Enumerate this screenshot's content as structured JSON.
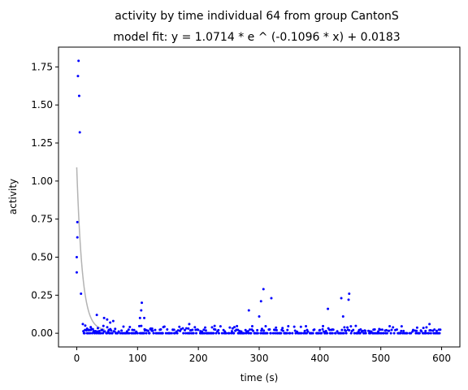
{
  "chart_data": {
    "type": "scatter",
    "title": "activity by time individual 64 from group CantonS",
    "subtitle": "model fit: y = 1.0714 * e ^ (-0.1096 * x) + 0.0183",
    "xlabel": "time (s)",
    "ylabel": "activity",
    "xlim": [
      -30,
      630
    ],
    "ylim": [
      -0.09,
      1.88
    ],
    "x_ticks": [
      0,
      100,
      200,
      300,
      400,
      500,
      600
    ],
    "x_tick_labels": [
      "0",
      "100",
      "200",
      "300",
      "400",
      "500",
      "600"
    ],
    "y_ticks": [
      0.0,
      0.25,
      0.5,
      0.75,
      1.0,
      1.25,
      1.5,
      1.75
    ],
    "y_tick_labels": [
      "0.00",
      "0.25",
      "0.50",
      "0.75",
      "1.00",
      "1.25",
      "1.50",
      "1.75"
    ],
    "grid": false,
    "colors": {
      "points": "#0000ff",
      "fit_line": "#b3b3b3"
    },
    "fit": {
      "a": 1.0714,
      "b": -0.1096,
      "c": 0.0183,
      "x_range": [
        0,
        46
      ]
    },
    "series": [
      {
        "points": [
          [
            0,
            0.4
          ],
          [
            0,
            0.5
          ],
          [
            1,
            0.63
          ],
          [
            1,
            0.73
          ],
          [
            2,
            1.69
          ],
          [
            3,
            1.79
          ],
          [
            4,
            1.56
          ],
          [
            5,
            1.32
          ],
          [
            7,
            0.26
          ],
          [
            10,
            0.06
          ],
          [
            14,
            0.05
          ],
          [
            17,
            0.03
          ],
          [
            20,
            0.02
          ],
          [
            23,
            0.04
          ],
          [
            33,
            0.12
          ],
          [
            45,
            0.1
          ],
          [
            50,
            0.09
          ],
          [
            55,
            0.07
          ],
          [
            60,
            0.08
          ],
          [
            104,
            0.1
          ],
          [
            106,
            0.15
          ],
          [
            107,
            0.2
          ],
          [
            111,
            0.1
          ],
          [
            185,
            0.06
          ],
          [
            283,
            0.15
          ],
          [
            300,
            0.11
          ],
          [
            303,
            0.21
          ],
          [
            307,
            0.29
          ],
          [
            320,
            0.23
          ],
          [
            413,
            0.16
          ],
          [
            435,
            0.23
          ],
          [
            438,
            0.11
          ],
          [
            447,
            0.22
          ],
          [
            448,
            0.26
          ],
          [
            580,
            0.06
          ]
        ]
      }
    ]
  }
}
